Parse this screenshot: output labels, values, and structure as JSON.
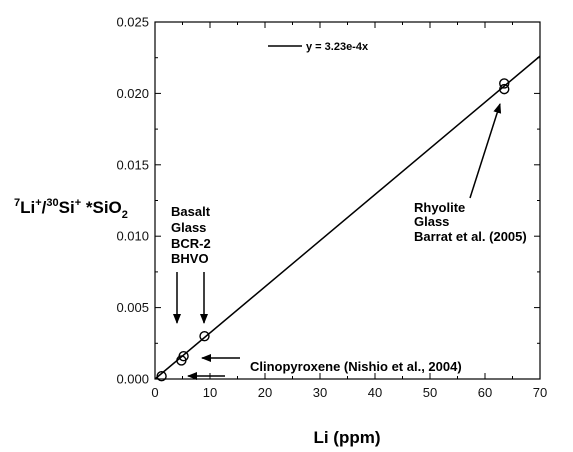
{
  "chart_data": {
    "type": "scatter",
    "title": "",
    "xlabel": "Li (ppm)",
    "ylabel": {
      "parts": [
        "7",
        "Li",
        "+",
        "/",
        "30",
        "Si",
        "+",
        " *SiO",
        "2"
      ]
    },
    "xlim": [
      0,
      70
    ],
    "ylim": [
      0,
      0.025
    ],
    "x_ticks": [
      0,
      10,
      20,
      30,
      40,
      50,
      60,
      70
    ],
    "y_ticks": [
      0.0,
      0.005,
      0.01,
      0.015,
      0.02,
      0.025
    ],
    "y_tick_labels": [
      "0.000",
      "0.005",
      "0.010",
      "0.015",
      "0.020",
      "0.025"
    ],
    "grid": false,
    "legend": {
      "label": "y = 3.23e-4x",
      "placement": "top"
    },
    "series": [
      {
        "points": [
          {
            "x": 1.2,
            "y": 0.0002
          },
          {
            "x": 4.8,
            "y": 0.0013
          },
          {
            "x": 5.2,
            "y": 0.0016
          },
          {
            "x": 9.0,
            "y": 0.003
          },
          {
            "x": 63.5,
            "y": 0.0203
          },
          {
            "x": 63.5,
            "y": 0.0207
          }
        ]
      }
    ],
    "fit_line": {
      "slope": 0.000323,
      "intercept": 0
    },
    "annotations": {
      "basalt": [
        "Basalt",
        "Glass",
        "BCR-2",
        "BHVO"
      ],
      "rhyolite": [
        "Rhyolite",
        "Glass",
        "Barrat et al. (2005)"
      ],
      "clinopyroxene": "Clinopyroxene (Nishio et al., 2004)"
    }
  }
}
